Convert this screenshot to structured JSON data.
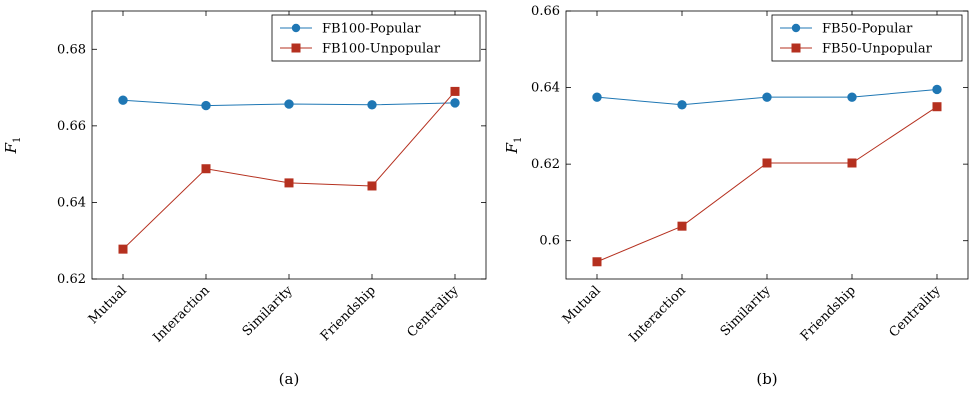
{
  "figure": {
    "panels": [
      "(a)",
      "(b)"
    ]
  },
  "chart_data": [
    {
      "type": "line",
      "panel_label": "(a)",
      "categories": [
        "Mutual",
        "Interaction",
        "Similarity",
        "Friendship",
        "Centrality"
      ],
      "ylabel": "F1",
      "ylabel_main": "F",
      "ylabel_sub": "1",
      "ylim": [
        0.62,
        0.69
      ],
      "yticks": [
        0.62,
        0.64,
        0.66,
        0.68
      ],
      "ytick_labels": [
        "0.62",
        "0.64",
        "0.66",
        "0.68"
      ],
      "legend_position": "top-right",
      "series": [
        {
          "name": "FB100-Popular",
          "color": "#1f77b4",
          "marker": "circle",
          "values": [
            0.6667,
            0.6653,
            0.6657,
            0.6655,
            0.666
          ]
        },
        {
          "name": "FB100-Unpopular",
          "color": "#b5301f",
          "marker": "square",
          "values": [
            0.6278,
            0.6488,
            0.6451,
            0.6443,
            0.669
          ]
        }
      ]
    },
    {
      "type": "line",
      "panel_label": "(b)",
      "categories": [
        "Mutual",
        "Interaction",
        "Similarity",
        "Friendship",
        "Centrality"
      ],
      "ylabel": "F1",
      "ylabel_main": "F",
      "ylabel_sub": "1",
      "ylim": [
        0.59,
        0.66
      ],
      "yticks": [
        0.6,
        0.62,
        0.64,
        0.66
      ],
      "ytick_labels": [
        "0.6",
        "0.62",
        "0.64",
        "0.66"
      ],
      "legend_position": "top-right",
      "series": [
        {
          "name": "FB50-Popular",
          "color": "#1f77b4",
          "marker": "circle",
          "values": [
            0.6375,
            0.6355,
            0.6375,
            0.6375,
            0.6395
          ]
        },
        {
          "name": "FB50-Unpopular",
          "color": "#b5301f",
          "marker": "square",
          "values": [
            0.5945,
            0.6038,
            0.6203,
            0.6203,
            0.635
          ]
        }
      ]
    }
  ]
}
